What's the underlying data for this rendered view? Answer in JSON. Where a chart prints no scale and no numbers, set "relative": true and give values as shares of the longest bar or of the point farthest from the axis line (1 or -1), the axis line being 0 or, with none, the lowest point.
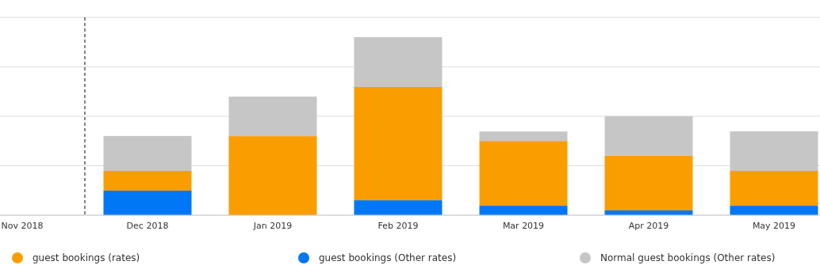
{
  "chart_data": {
    "type": "bar",
    "stacked": true,
    "relative": true,
    "grid": true,
    "categories": [
      "Nov 2018",
      "Dec 2018",
      "Jan 2019",
      "Feb 2019",
      "Mar 2019",
      "Apr 2019",
      "May 2019"
    ],
    "series": [
      {
        "name": "guest bookings (Other rates)",
        "color": "#0077f5",
        "values": [
          null,
          0.138,
          0,
          0.084,
          0.053,
          0.027,
          0.053
        ]
      },
      {
        "name": "guest bookings (rates)",
        "color": "#fa9e00",
        "values": [
          null,
          0.111,
          0.444,
          0.636,
          0.364,
          0.307,
          0.196
        ]
      },
      {
        "name": "Normal guest bookings (Other rates)",
        "color": "#c6c6c6",
        "values": [
          null,
          0.196,
          0.222,
          0.28,
          0.053,
          0.222,
          0.222
        ]
      }
    ],
    "legend": "bottom"
  }
}
